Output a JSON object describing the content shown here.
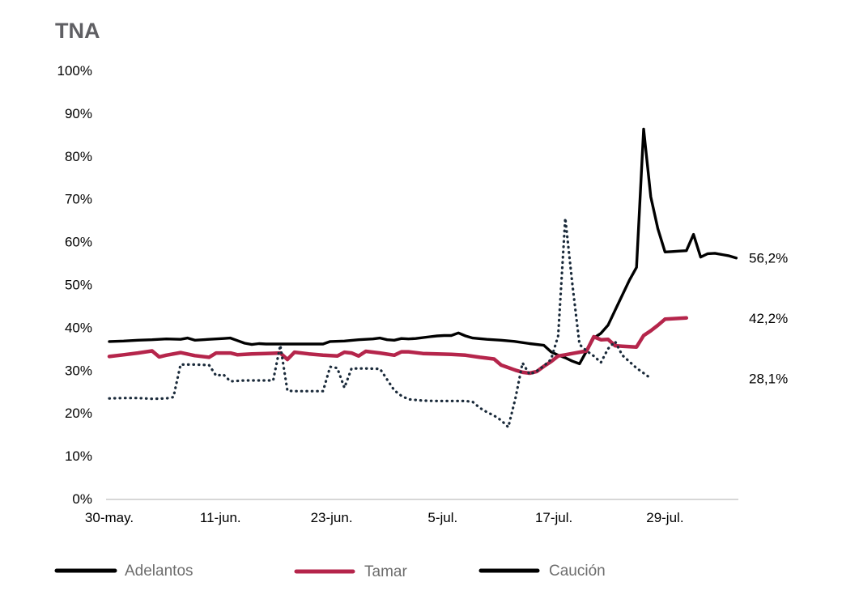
{
  "chart_data": {
    "type": "line",
    "title": "TNA",
    "xlabel": "",
    "ylabel": "",
    "ylim": [
      0,
      100
    ],
    "y_ticks": [
      "0%",
      "10%",
      "20%",
      "30%",
      "40%",
      "50%",
      "60%",
      "70%",
      "80%",
      "90%",
      "100%"
    ],
    "x_ticks": [
      "30-may.",
      "11-jun.",
      "23-jun.",
      "5-jul.",
      "17-jul.",
      "29-jul."
    ],
    "grid": false,
    "legend_position": "bottom",
    "series": [
      {
        "name": "Adelantos",
        "color": "#000000",
        "style": "solid",
        "end_label": "56,2%",
        "points": [
          [
            0,
            36.7
          ],
          [
            2,
            36.8
          ],
          [
            4,
            37.0
          ],
          [
            6,
            37.1
          ],
          [
            8,
            37.3
          ],
          [
            10,
            37.2
          ],
          [
            11,
            37.5
          ],
          [
            12,
            37.0
          ],
          [
            14,
            37.2
          ],
          [
            16,
            37.4
          ],
          [
            17,
            37.5
          ],
          [
            18,
            36.9
          ],
          [
            19,
            36.3
          ],
          [
            20,
            36.0
          ],
          [
            21,
            36.2
          ],
          [
            22,
            36.1
          ],
          [
            24,
            36.1
          ],
          [
            26,
            36.1
          ],
          [
            28,
            36.1
          ],
          [
            30,
            36.1
          ],
          [
            31,
            36.7
          ],
          [
            33,
            36.8
          ],
          [
            35,
            37.1
          ],
          [
            37,
            37.3
          ],
          [
            38,
            37.5
          ],
          [
            39,
            37.1
          ],
          [
            40,
            37.0
          ],
          [
            41,
            37.4
          ],
          [
            42,
            37.3
          ],
          [
            43,
            37.4
          ],
          [
            45,
            37.8
          ],
          [
            46,
            38.0
          ],
          [
            47,
            38.1
          ],
          [
            48,
            38.1
          ],
          [
            49,
            38.7
          ],
          [
            50,
            38.0
          ],
          [
            51,
            37.5
          ],
          [
            53,
            37.2
          ],
          [
            55,
            37.0
          ],
          [
            57,
            36.7
          ],
          [
            59,
            36.2
          ],
          [
            61,
            35.8
          ],
          [
            62,
            34.3
          ],
          [
            63,
            33.5
          ],
          [
            64,
            32.9
          ],
          [
            65,
            32.1
          ],
          [
            66,
            31.5
          ],
          [
            67,
            34.5
          ],
          [
            68,
            37.5
          ],
          [
            69,
            38.6
          ],
          [
            70,
            40.5
          ],
          [
            71,
            44.0
          ],
          [
            72,
            47.5
          ],
          [
            73,
            51.0
          ],
          [
            74,
            54.0
          ],
          [
            75,
            86.3
          ],
          [
            76,
            70.5
          ],
          [
            77,
            63.0
          ],
          [
            78,
            57.6
          ],
          [
            79,
            57.7
          ],
          [
            80,
            57.8
          ],
          [
            81,
            57.9
          ],
          [
            82,
            61.7
          ],
          [
            83,
            56.4
          ],
          [
            84,
            57.2
          ],
          [
            85,
            57.3
          ],
          [
            86,
            57.0
          ],
          [
            87,
            56.7
          ],
          [
            88,
            56.2
          ]
        ]
      },
      {
        "name": "Tamar",
        "color": "#b5254b",
        "style": "solid",
        "end_label": "42,2%",
        "points": [
          [
            0,
            33.2
          ],
          [
            2,
            33.6
          ],
          [
            4,
            34.0
          ],
          [
            6,
            34.5
          ],
          [
            7,
            33.1
          ],
          [
            8,
            33.5
          ],
          [
            10,
            34.1
          ],
          [
            12,
            33.4
          ],
          [
            14,
            33.0
          ],
          [
            15,
            34.0
          ],
          [
            17,
            34.0
          ],
          [
            18,
            33.6
          ],
          [
            20,
            33.8
          ],
          [
            22,
            33.9
          ],
          [
            24,
            34.0
          ],
          [
            25,
            32.5
          ],
          [
            26,
            34.2
          ],
          [
            28,
            33.8
          ],
          [
            30,
            33.5
          ],
          [
            32,
            33.3
          ],
          [
            33,
            34.2
          ],
          [
            34,
            34.0
          ],
          [
            35,
            33.3
          ],
          [
            36,
            34.4
          ],
          [
            38,
            34.0
          ],
          [
            40,
            33.5
          ],
          [
            41,
            34.3
          ],
          [
            42,
            34.3
          ],
          [
            44,
            33.9
          ],
          [
            46,
            33.8
          ],
          [
            48,
            33.7
          ],
          [
            50,
            33.5
          ],
          [
            52,
            33.0
          ],
          [
            54,
            32.6
          ],
          [
            55,
            31.2
          ],
          [
            56,
            30.6
          ],
          [
            57,
            30.0
          ],
          [
            58,
            29.5
          ],
          [
            59,
            29.3
          ],
          [
            60,
            29.7
          ],
          [
            61,
            30.9
          ],
          [
            62,
            32.0
          ],
          [
            63,
            33.3
          ],
          [
            64,
            33.6
          ],
          [
            65,
            33.9
          ],
          [
            66,
            34.2
          ],
          [
            67,
            34.5
          ],
          [
            68,
            37.8
          ],
          [
            69,
            37.1
          ],
          [
            70,
            37.2
          ],
          [
            71,
            35.7
          ],
          [
            72,
            35.6
          ],
          [
            73,
            35.5
          ],
          [
            74,
            35.4
          ],
          [
            75,
            38.1
          ],
          [
            76,
            39.2
          ],
          [
            77,
            40.5
          ],
          [
            78,
            41.9
          ],
          [
            79,
            42.0
          ],
          [
            80,
            42.1
          ],
          [
            81,
            42.2
          ]
        ]
      },
      {
        "name": "Caución",
        "color": "#1a2a3a",
        "style": "dotted",
        "end_label": "28,1%",
        "points": [
          [
            0,
            23.4
          ],
          [
            2,
            23.5
          ],
          [
            4,
            23.5
          ],
          [
            6,
            23.3
          ],
          [
            8,
            23.4
          ],
          [
            9,
            23.7
          ],
          [
            10,
            31.3
          ],
          [
            12,
            31.3
          ],
          [
            14,
            31.2
          ],
          [
            15,
            28.7
          ],
          [
            16,
            29.0
          ],
          [
            17,
            27.4
          ],
          [
            19,
            27.6
          ],
          [
            21,
            27.6
          ],
          [
            23,
            27.6
          ],
          [
            24,
            35.8
          ],
          [
            25,
            25.2
          ],
          [
            26,
            25.1
          ],
          [
            28,
            25.1
          ],
          [
            30,
            25.1
          ],
          [
            31,
            30.8
          ],
          [
            32,
            30.5
          ],
          [
            33,
            25.9
          ],
          [
            34,
            30.4
          ],
          [
            36,
            30.4
          ],
          [
            38,
            30.3
          ],
          [
            40,
            25.3
          ],
          [
            41,
            24.0
          ],
          [
            42,
            23.2
          ],
          [
            44,
            22.9
          ],
          [
            46,
            22.8
          ],
          [
            48,
            22.8
          ],
          [
            50,
            22.8
          ],
          [
            51,
            22.6
          ],
          [
            52,
            21.2
          ],
          [
            53,
            20.2
          ],
          [
            54,
            19.4
          ],
          [
            55,
            18.3
          ],
          [
            56,
            16.7
          ],
          [
            57,
            23.4
          ],
          [
            58,
            31.7
          ],
          [
            59,
            29.0
          ],
          [
            60,
            29.8
          ],
          [
            61,
            31.0
          ],
          [
            62,
            32.5
          ],
          [
            63,
            38.0
          ],
          [
            64,
            65.5
          ],
          [
            65,
            50.0
          ],
          [
            66,
            36.0
          ],
          [
            67,
            34.5
          ],
          [
            68,
            33.3
          ],
          [
            69,
            31.8
          ],
          [
            70,
            35.0
          ],
          [
            71,
            36.7
          ],
          [
            72,
            33.5
          ],
          [
            73,
            32.0
          ],
          [
            74,
            30.5
          ],
          [
            75,
            29.3
          ],
          [
            76,
            28.1
          ]
        ]
      }
    ]
  }
}
